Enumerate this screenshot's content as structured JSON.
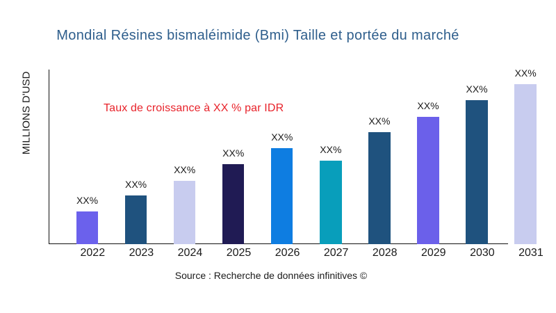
{
  "title": {
    "text": "Mondial Résines bismaléimide (Bmi) Taille et portée du marché",
    "color": "#2e5e8c"
  },
  "annotation": {
    "text": "Taux de croissance à XX % par IDR",
    "color": "#e8222a"
  },
  "source": {
    "text": "Source : Recherche de données infinitives ©",
    "color": "#1a1a1a"
  },
  "axes": {
    "y_label": "MILLIONS D'USD",
    "line_color": "#111111",
    "text_color": "#1a1a1a"
  },
  "chart_data": {
    "type": "bar",
    "title": "Mondial Résines bismaléimide (Bmi) Taille et portée du marché",
    "xlabel": "",
    "ylabel": "MILLIONS D'USD",
    "categories": [
      "2022",
      "2023",
      "2024",
      "2025",
      "2026",
      "2027",
      "2028",
      "2029",
      "2030",
      "2031"
    ],
    "values": [
      47,
      70,
      91.5,
      115.3,
      138,
      120.5,
      161.5,
      182.6,
      207.2,
      230
    ],
    "values_unit": "relative bar height, px (numeric axis not labelled in figure)",
    "bar_value_labels": [
      "XX%",
      "XX%",
      "XX%",
      "XX%",
      "XX%",
      "XX%",
      "XX%",
      "XX%",
      "XX%",
      "XX%"
    ],
    "bar_colors": [
      "#6b61ec",
      "#1f527e",
      "#c8ccef",
      "#201b54",
      "#0e7de1",
      "#089ebb",
      "#1f527e",
      "#6b60ea",
      "#1f527e",
      "#c8ccef"
    ],
    "annotation": "Taux de croissance à XX % par IDR",
    "legend": "none",
    "grid": "off"
  }
}
